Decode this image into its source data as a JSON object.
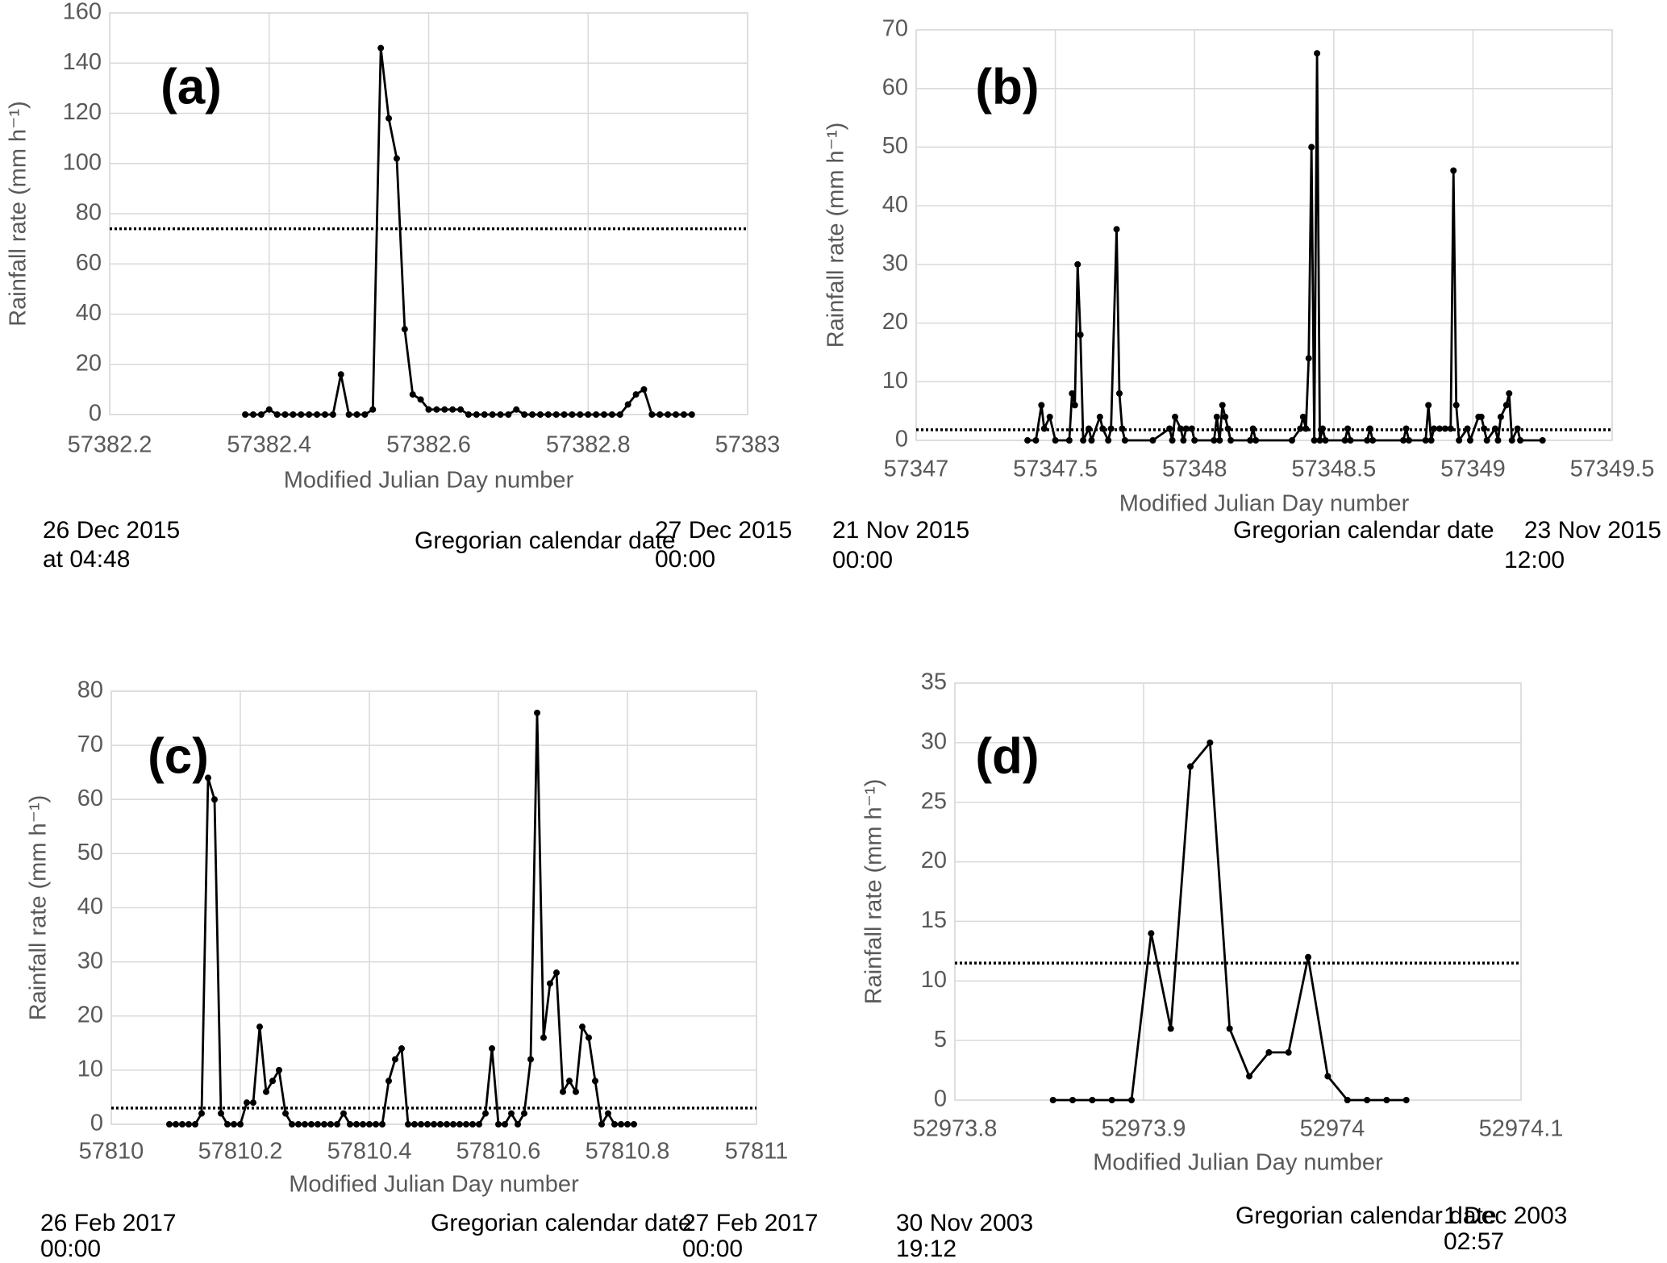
{
  "chart_data": [
    {
      "type": "line",
      "panel_label": "(a)",
      "y_label": "Rainfall rate (mm h⁻¹)",
      "x_label": "Modified Julian Day number",
      "date_left": [
        "26 Dec 2015",
        "at 04:48"
      ],
      "date_center": "Gregorian calendar date",
      "date_right": [
        "27 Dec 2015",
        "00:00"
      ],
      "xlim": [
        57382.2,
        57383
      ],
      "xticks": [
        57382.2,
        57382.4,
        57382.6,
        57382.8,
        57383
      ],
      "ylim": [
        0,
        160
      ],
      "yticks": [
        0,
        20,
        40,
        60,
        80,
        100,
        120,
        140,
        160
      ],
      "grid": true,
      "color": "#000000",
      "reference_line": 74,
      "x": [
        57382.37,
        57382.38,
        57382.39,
        57382.4,
        57382.41,
        57382.42,
        57382.43,
        57382.44,
        57382.45,
        57382.46,
        57382.47,
        57382.48,
        57382.49,
        57382.5,
        57382.51,
        57382.52,
        57382.53,
        57382.54,
        57382.55,
        57382.56,
        57382.57,
        57382.58,
        57382.59,
        57382.6,
        57382.61,
        57382.62,
        57382.63,
        57382.64,
        57382.65,
        57382.66,
        57382.67,
        57382.68,
        57382.69,
        57382.7,
        57382.71,
        57382.72,
        57382.73,
        57382.74,
        57382.75,
        57382.76,
        57382.77,
        57382.78,
        57382.79,
        57382.8,
        57382.81,
        57382.82,
        57382.83,
        57382.84,
        57382.85,
        57382.86,
        57382.87,
        57382.88,
        57382.89,
        57382.9,
        57382.91,
        57382.92,
        57382.93
      ],
      "values": [
        0,
        0,
        0,
        2,
        0,
        0,
        0,
        0,
        0,
        0,
        0,
        0,
        16,
        0,
        0,
        0,
        2,
        146,
        118,
        102,
        34,
        8,
        6,
        2,
        2,
        2,
        2,
        2,
        0,
        0,
        0,
        0,
        0,
        0,
        2,
        0,
        0,
        0,
        0,
        0,
        0,
        0,
        0,
        0,
        0,
        0,
        0,
        0,
        4,
        8,
        10,
        0,
        0,
        0,
        0,
        0,
        0
      ]
    },
    {
      "type": "line",
      "panel_label": "(b)",
      "y_label": "Rainfall rate (mm h⁻¹)",
      "x_label": "Modified Julian Day number",
      "date_left": [
        "21 Nov 2015",
        "00:00"
      ],
      "date_center": "Gregorian calendar date",
      "date_right": [
        "23 Nov 2015",
        "12:00"
      ],
      "xlim": [
        57347,
        57349.5
      ],
      "xticks": [
        57347,
        57347.5,
        57348,
        57348.5,
        57349,
        57349.5
      ],
      "ylim": [
        0,
        70
      ],
      "yticks": [
        0,
        10,
        20,
        30,
        40,
        50,
        60,
        70
      ],
      "grid": true,
      "color": "#000000",
      "reference_line": 1.8,
      "x": [
        57347.4,
        57347.43,
        57347.45,
        57347.46,
        57347.48,
        57347.5,
        57347.55,
        57347.56,
        57347.57,
        57347.58,
        57347.59,
        57347.6,
        57347.62,
        57347.63,
        57347.66,
        57347.67,
        57347.69,
        57347.7,
        57347.72,
        57347.73,
        57347.74,
        57347.75,
        57347.85,
        57347.91,
        57347.92,
        57347.93,
        57347.95,
        57347.96,
        57347.97,
        57347.99,
        57348,
        57348.07,
        57348.08,
        57348.09,
        57348.1,
        57348.11,
        57348.12,
        57348.13,
        57348.2,
        57348.21,
        57348.22,
        57348.35,
        57348.38,
        57348.39,
        57348.4,
        57348.41,
        57348.42,
        57348.43,
        57348.44,
        57348.45,
        57348.46,
        57348.47,
        57348.54,
        57348.55,
        57348.56,
        57348.62,
        57348.63,
        57348.64,
        57348.75,
        57348.76,
        57348.77,
        57348.83,
        57348.84,
        57348.85,
        57348.86,
        57348.88,
        57348.9,
        57348.92,
        57348.93,
        57348.94,
        57348.95,
        57348.98,
        57348.99,
        57349.02,
        57349.03,
        57349.04,
        57349.05,
        57349.08,
        57349.09,
        57349.1,
        57349.12,
        57349.13,
        57349.14,
        57349.16,
        57349.17,
        57349.25
      ],
      "values": [
        0,
        0,
        6,
        2,
        4,
        0,
        0,
        8,
        6,
        30,
        18,
        0,
        2,
        0,
        4,
        2,
        0,
        2,
        36,
        8,
        2,
        0,
        0,
        2,
        0,
        4,
        2,
        0,
        2,
        2,
        0,
        0,
        4,
        0,
        6,
        4,
        2,
        0,
        0,
        2,
        0,
        0,
        2,
        4,
        2,
        14,
        50,
        0,
        66,
        0,
        2,
        0,
        0,
        2,
        0,
        0,
        2,
        0,
        0,
        2,
        0,
        0,
        6,
        0,
        2,
        2,
        2,
        2,
        46,
        6,
        0,
        2,
        0,
        4,
        4,
        2,
        0,
        2,
        0,
        4,
        6,
        8,
        0,
        2,
        0,
        0
      ]
    },
    {
      "type": "line",
      "panel_label": "(c)",
      "y_label": "Rainfall rate (mm h⁻¹)",
      "x_label": "Modified Julian Day number",
      "date_left": [
        "26 Feb 2017",
        "00:00"
      ],
      "date_center": "Gregorian calendar date",
      "date_right": [
        "27 Feb 2017",
        "00:00"
      ],
      "xlim": [
        57810,
        57811
      ],
      "xticks": [
        57810,
        57810.2,
        57810.4,
        57810.6,
        57810.8,
        57811
      ],
      "ylim": [
        0,
        80
      ],
      "yticks": [
        0,
        10,
        20,
        30,
        40,
        50,
        60,
        70,
        80
      ],
      "grid": true,
      "color": "#000000",
      "reference_line": 3,
      "x": [
        57810.09,
        57810.1,
        57810.11,
        57810.12,
        57810.13,
        57810.14,
        57810.15,
        57810.16,
        57810.17,
        57810.18,
        57810.19,
        57810.2,
        57810.21,
        57810.22,
        57810.23,
        57810.24,
        57810.25,
        57810.26,
        57810.27,
        57810.28,
        57810.29,
        57810.3,
        57810.31,
        57810.32,
        57810.33,
        57810.34,
        57810.35,
        57810.36,
        57810.37,
        57810.38,
        57810.39,
        57810.4,
        57810.41,
        57810.42,
        57810.43,
        57810.44,
        57810.45,
        57810.46,
        57810.47,
        57810.48,
        57810.49,
        57810.5,
        57810.51,
        57810.52,
        57810.53,
        57810.54,
        57810.55,
        57810.56,
        57810.57,
        57810.58,
        57810.59,
        57810.6,
        57810.61,
        57810.62,
        57810.63,
        57810.64,
        57810.65,
        57810.66,
        57810.67,
        57810.68,
        57810.69,
        57810.7,
        57810.71,
        57810.72,
        57810.73,
        57810.74,
        57810.75,
        57810.76,
        57810.77,
        57810.78,
        57810.79,
        57810.8,
        57810.81
      ],
      "values": [
        0,
        0,
        0,
        0,
        0,
        2,
        64,
        60,
        2,
        0,
        0,
        0,
        4,
        4,
        18,
        6,
        8,
        10,
        2,
        0,
        0,
        0,
        0,
        0,
        0,
        0,
        0,
        2,
        0,
        0,
        0,
        0,
        0,
        0,
        8,
        12,
        14,
        0,
        0,
        0,
        0,
        0,
        0,
        0,
        0,
        0,
        0,
        0,
        0,
        2,
        14,
        0,
        0,
        2,
        0,
        2,
        12,
        76,
        16,
        26,
        28,
        6,
        8,
        6,
        18,
        16,
        8,
        0,
        2,
        0,
        0,
        0,
        0
      ]
    },
    {
      "type": "line",
      "panel_label": "(d)",
      "y_label": "Rainfall rate (mm h⁻¹)",
      "x_label": "Modified Julian Day number",
      "date_left": [
        "30 Nov 2003",
        "19:12"
      ],
      "date_center": "Gregorian calendar date",
      "date_right": [
        "1 Dec 2003",
        "02:57"
      ],
      "xlim": [
        52973.8,
        52974.1
      ],
      "xticks": [
        52973.8,
        52973.9,
        52974,
        52974.1
      ],
      "ylim": [
        0,
        35
      ],
      "yticks": [
        0,
        5,
        10,
        15,
        20,
        25,
        30,
        35
      ],
      "grid": true,
      "color": "#000000",
      "reference_line": 11.5,
      "x": [
        52973.852,
        52973.8624,
        52973.8728,
        52973.8832,
        52973.8936,
        52973.904,
        52973.9144,
        52973.9248,
        52973.9352,
        52973.9456,
        52973.956,
        52973.9664,
        52973.9768,
        52973.9872,
        52973.9976,
        52974.008,
        52974.0184,
        52974.0288,
        52974.0392
      ],
      "values": [
        0,
        0,
        0,
        0,
        0,
        14,
        6,
        28,
        30,
        6,
        2,
        4,
        4,
        12,
        2,
        0,
        0,
        0,
        0
      ]
    }
  ]
}
